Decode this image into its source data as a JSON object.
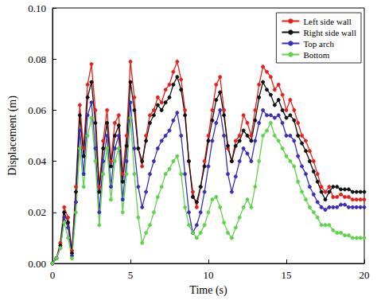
{
  "chart_data": {
    "type": "line",
    "x_label": "Time (s)",
    "y_label": "Displacement (m)",
    "xlim": [
      0,
      20
    ],
    "xticks": [
      0,
      5,
      10,
      15,
      20
    ],
    "ylim": [
      0,
      0.1
    ],
    "yticks": [
      {
        "value": 0,
        "label": "0.00"
      },
      {
        "value": 0.02,
        "label": "0.02"
      },
      {
        "value": 0.04,
        "label": "0.04"
      },
      {
        "value": 0.06,
        "label": "0.06"
      },
      {
        "value": 0.08,
        "label": "0.08"
      },
      {
        "value": 0.1,
        "label": "0.10"
      }
    ],
    "grid": false,
    "legend": "upper right",
    "marker": "circle",
    "x": [
      0,
      0.25,
      0.5,
      0.75,
      1,
      1.25,
      1.5,
      1.75,
      2,
      2.25,
      2.5,
      2.75,
      3,
      3.25,
      3.5,
      3.75,
      4,
      4.25,
      4.5,
      4.75,
      5,
      5.25,
      5.5,
      5.75,
      6,
      6.25,
      6.5,
      6.75,
      7,
      7.25,
      7.5,
      7.75,
      8,
      8.25,
      8.5,
      8.75,
      9,
      9.25,
      9.5,
      9.75,
      10,
      10.25,
      10.5,
      10.75,
      11,
      11.25,
      11.5,
      11.75,
      12,
      12.25,
      12.5,
      12.75,
      13,
      13.25,
      13.5,
      13.75,
      14,
      14.25,
      14.5,
      14.75,
      15,
      15.25,
      15.5,
      15.75,
      16,
      16.25,
      16.5,
      16.75,
      17,
      17.25,
      17.5,
      17.75,
      18,
      18.25,
      18.5,
      18.75,
      19,
      19.25,
      19.5,
      19.75,
      20
    ],
    "series": [
      {
        "name": "Left side wall",
        "color": "#e8201c",
        "values": [
          0,
          0.002,
          0.008,
          0.022,
          0.018,
          0.005,
          0.03,
          0.062,
          0.045,
          0.07,
          0.078,
          0.06,
          0.03,
          0.048,
          0.06,
          0.04,
          0.055,
          0.058,
          0.035,
          0.05,
          0.079,
          0.065,
          0.045,
          0.038,
          0.05,
          0.058,
          0.06,
          0.065,
          0.063,
          0.068,
          0.07,
          0.075,
          0.079,
          0.072,
          0.06,
          0.04,
          0.028,
          0.022,
          0.03,
          0.04,
          0.05,
          0.06,
          0.07,
          0.073,
          0.06,
          0.045,
          0.04,
          0.048,
          0.05,
          0.058,
          0.055,
          0.05,
          0.06,
          0.07,
          0.077,
          0.075,
          0.073,
          0.068,
          0.07,
          0.066,
          0.06,
          0.064,
          0.06,
          0.055,
          0.05,
          0.048,
          0.044,
          0.04,
          0.035,
          0.03,
          0.028,
          0.03,
          0.026,
          0.026,
          0.027,
          0.026,
          0.026,
          0.025,
          0.025,
          0.025,
          0.025
        ]
      },
      {
        "name": "Right side wall",
        "color": "#111111",
        "values": [
          0,
          0.002,
          0.007,
          0.02,
          0.016,
          0.004,
          0.028,
          0.058,
          0.042,
          0.065,
          0.071,
          0.055,
          0.028,
          0.045,
          0.055,
          0.038,
          0.05,
          0.054,
          0.032,
          0.046,
          0.071,
          0.06,
          0.045,
          0.04,
          0.048,
          0.055,
          0.058,
          0.062,
          0.06,
          0.063,
          0.065,
          0.07,
          0.073,
          0.068,
          0.058,
          0.04,
          0.026,
          0.024,
          0.03,
          0.038,
          0.048,
          0.056,
          0.064,
          0.067,
          0.058,
          0.046,
          0.04,
          0.046,
          0.048,
          0.052,
          0.05,
          0.048,
          0.056,
          0.065,
          0.071,
          0.068,
          0.066,
          0.062,
          0.064,
          0.06,
          0.057,
          0.058,
          0.056,
          0.05,
          0.047,
          0.044,
          0.04,
          0.036,
          0.032,
          0.028,
          0.025,
          0.028,
          0.03,
          0.03,
          0.029,
          0.029,
          0.029,
          0.028,
          0.028,
          0.028,
          0.028
        ]
      },
      {
        "name": "Top arch",
        "color": "#3a2fb8",
        "values": [
          0,
          0.002,
          0.006,
          0.018,
          0.014,
          0.003,
          0.024,
          0.052,
          0.035,
          0.058,
          0.063,
          0.045,
          0.02,
          0.04,
          0.05,
          0.03,
          0.045,
          0.05,
          0.025,
          0.04,
          0.063,
          0.045,
          0.03,
          0.022,
          0.028,
          0.035,
          0.04,
          0.045,
          0.048,
          0.05,
          0.052,
          0.056,
          0.059,
          0.05,
          0.035,
          0.02,
          0.012,
          0.015,
          0.02,
          0.028,
          0.038,
          0.048,
          0.055,
          0.06,
          0.05,
          0.035,
          0.028,
          0.034,
          0.04,
          0.045,
          0.043,
          0.04,
          0.048,
          0.055,
          0.06,
          0.058,
          0.058,
          0.057,
          0.058,
          0.055,
          0.05,
          0.05,
          0.048,
          0.042,
          0.038,
          0.035,
          0.03,
          0.027,
          0.024,
          0.022,
          0.021,
          0.022,
          0.022,
          0.022,
          0.023,
          0.023,
          0.022,
          0.022,
          0.022,
          0.022,
          0.022
        ]
      },
      {
        "name": "Bottom",
        "color": "#5fd34a",
        "values": [
          0,
          0.002,
          0.006,
          0.016,
          0.01,
          0.002,
          0.02,
          0.045,
          0.03,
          0.05,
          0.057,
          0.04,
          0.015,
          0.035,
          0.045,
          0.025,
          0.04,
          0.045,
          0.02,
          0.035,
          0.057,
          0.035,
          0.018,
          0.008,
          0.012,
          0.015,
          0.02,
          0.026,
          0.03,
          0.035,
          0.037,
          0.04,
          0.042,
          0.035,
          0.022,
          0.015,
          0.012,
          0.01,
          0.012,
          0.015,
          0.02,
          0.025,
          0.026,
          0.022,
          0.016,
          0.012,
          0.01,
          0.014,
          0.018,
          0.022,
          0.025,
          0.022,
          0.03,
          0.04,
          0.05,
          0.052,
          0.055,
          0.05,
          0.048,
          0.045,
          0.042,
          0.04,
          0.038,
          0.032,
          0.028,
          0.025,
          0.022,
          0.02,
          0.018,
          0.015,
          0.015,
          0.015,
          0.013,
          0.012,
          0.012,
          0.011,
          0.011,
          0.01,
          0.01,
          0.01,
          0.01
        ]
      }
    ]
  }
}
